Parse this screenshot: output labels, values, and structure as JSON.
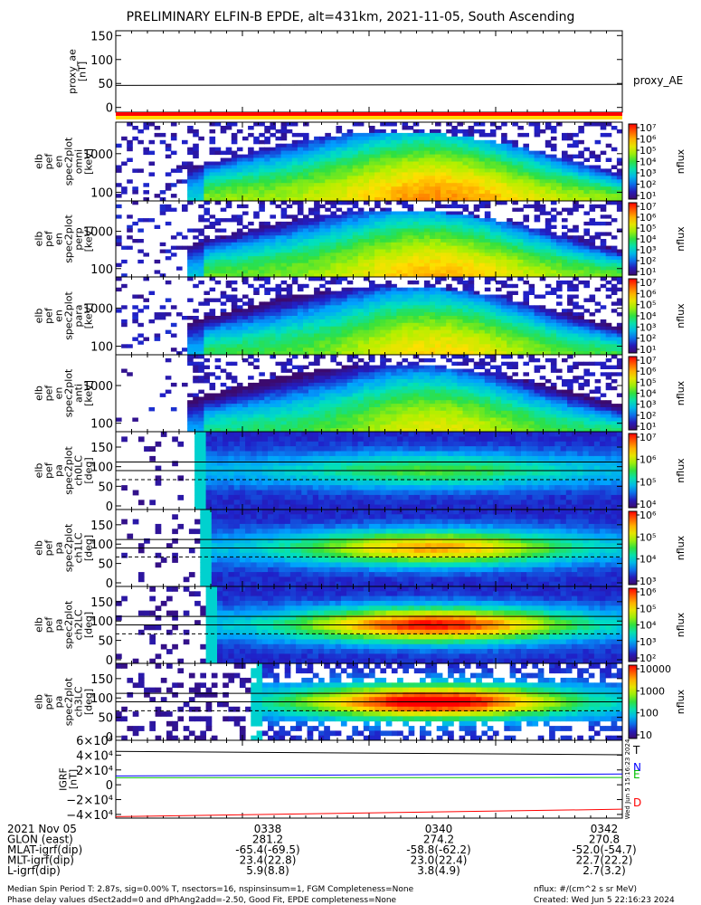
{
  "title": "PRELIMINARY ELFIN-B EPDE, alt=431km, 2021-11-05, South Ascending",
  "colors": {
    "proxy_bar_red": "#ff0000",
    "proxy_bar_yellow": "#ffd800",
    "igrf_T": "#000000",
    "igrf_N": "#0000ff",
    "igrf_E": "#00c000",
    "igrf_D": "#ff0000"
  },
  "panels": [
    {
      "id": "proxy",
      "ylabel": [
        "proxy_ae",
        "[nT]"
      ],
      "ticks": [
        "150",
        "100",
        "50",
        "0"
      ],
      "tick_values": [
        150,
        100,
        50,
        0
      ],
      "ylim": [
        -10,
        160
      ],
      "legend": "proxy_AE",
      "trace_value": 47
    },
    {
      "id": "spec-omni",
      "ylabel": [
        "elb",
        "pef",
        "en",
        "spec2plot",
        "omni",
        "[keV]"
      ],
      "ticks": [
        "1000",
        "100"
      ],
      "cbar": {
        "label": "nflux",
        "ticks": [
          "10⁷",
          "10⁶",
          "10⁵",
          "10⁴",
          "10³",
          "10²",
          "10¹"
        ]
      }
    },
    {
      "id": "spec-perp",
      "ylabel": [
        "elb",
        "pef",
        "en",
        "spec2plot",
        "perp",
        "[keV]"
      ],
      "ticks": [
        "1000",
        "100"
      ],
      "cbar": {
        "label": "nflux",
        "ticks": [
          "10⁷",
          "10⁶",
          "10⁵",
          "10⁴",
          "10³",
          "10²",
          "10¹"
        ]
      }
    },
    {
      "id": "spec-para",
      "ylabel": [
        "elb",
        "pef",
        "en",
        "spec2plot",
        "para",
        "[keV]"
      ],
      "ticks": [
        "1000",
        "100"
      ],
      "cbar": {
        "label": "nflux",
        "ticks": [
          "10⁷",
          "10⁶",
          "10⁵",
          "10⁴",
          "10³",
          "10²",
          "10¹"
        ]
      }
    },
    {
      "id": "spec-anti",
      "ylabel": [
        "elb",
        "pef",
        "en",
        "spec2plot",
        "anti",
        "[keV]"
      ],
      "ticks": [
        "1000",
        "100"
      ],
      "cbar": {
        "label": "nflux",
        "ticks": [
          "10⁷",
          "10⁶",
          "10⁵",
          "10⁴",
          "10³",
          "10²",
          "10¹"
        ]
      }
    },
    {
      "id": "pa-ch0",
      "ylabel": [
        "elb",
        "pef",
        "pa",
        "spec2plot",
        "ch0LC",
        "[deg]"
      ],
      "ticks": [
        "150",
        "100",
        "50",
        "0"
      ],
      "cbar": {
        "label": "nflux",
        "ticks": [
          "10⁷",
          "10⁶",
          "10⁵",
          "10⁴"
        ]
      }
    },
    {
      "id": "pa-ch1",
      "ylabel": [
        "elb",
        "pef",
        "pa",
        "spec2plot",
        "ch1LC",
        "[deg]"
      ],
      "ticks": [
        "150",
        "100",
        "50",
        "0"
      ],
      "cbar": {
        "label": "nflux",
        "ticks": [
          "10⁶",
          "10⁵",
          "10⁴",
          "10³"
        ]
      }
    },
    {
      "id": "pa-ch2",
      "ylabel": [
        "elb",
        "pef",
        "pa",
        "spec2plot",
        "ch2LC",
        "[deg]"
      ],
      "ticks": [
        "150",
        "100",
        "50",
        "0"
      ],
      "cbar": {
        "label": "nflux",
        "ticks": [
          "10⁶",
          "10⁵",
          "10⁴",
          "10³",
          "10²"
        ]
      }
    },
    {
      "id": "pa-ch3",
      "ylabel": [
        "elb",
        "pef",
        "pa",
        "spec2plot",
        "ch3LC",
        "[deg]"
      ],
      "ticks": [
        "150",
        "100",
        "50",
        "0"
      ],
      "cbar": {
        "label": "nflux",
        "ticks": [
          "10000",
          "1000",
          "100",
          "10"
        ]
      }
    },
    {
      "id": "igrf",
      "ylabel": [
        "IGRF",
        "[nT]"
      ],
      "ticks": [
        "6×10⁴",
        "4×10⁴",
        "2×10⁴",
        "0",
        "−2×10⁴",
        "−4×10⁴"
      ],
      "tick_values": [
        60000,
        40000,
        20000,
        0,
        -20000,
        -40000
      ],
      "ylim": [
        -45000,
        60000
      ],
      "legend": [
        "T",
        "N",
        "E",
        "D"
      ],
      "stamp": "Wed Jun  5 15:16:23 2024"
    }
  ],
  "chart_data": {
    "type": "heatmap",
    "title": "PRELIMINARY ELFIN-B EPDE, alt=431km, 2021-11-05, South Ascending",
    "x_ticks": [
      "0338",
      "0340",
      "0342"
    ],
    "proxy_ae": {
      "name": "proxy_AE",
      "ylim": [
        -10,
        160
      ],
      "value_start": 46,
      "value_end": 48
    },
    "energy_spectra": {
      "ylabel": "[keV]",
      "yscale": "log",
      "yticks": [
        100,
        1000
      ],
      "colorbar": {
        "label": "nflux",
        "range": [
          10,
          10000000
        ],
        "scale": "log"
      }
    },
    "pitch_angle_spectra": {
      "ylabel": "[deg]",
      "yticks": [
        0,
        50,
        100,
        150
      ],
      "dashed_line_deg": 67,
      "loss_cone_lines_deg": [
        90,
        112
      ]
    },
    "igrf": {
      "series": [
        {
          "name": "T",
          "start": 45000,
          "end": 40500
        },
        {
          "name": "N",
          "start": 12000,
          "end": 14500
        },
        {
          "name": "E",
          "start": 9500,
          "end": 9800
        },
        {
          "name": "D",
          "start": -43000,
          "end": -33000
        }
      ]
    }
  },
  "footer": {
    "rows": [
      {
        "label": "2021 Nov 05",
        "values": [
          "0338",
          "0340",
          "0342"
        ]
      },
      {
        "label": "GLON (east)",
        "values": [
          "281.2",
          "274.2",
          "270.8"
        ]
      },
      {
        "label": "MLAT-igrf(dip)",
        "values": [
          "-65.4(-69.5)",
          "-58.8(-62.2)",
          "-52.0(-54.7)"
        ]
      },
      {
        "label": "MLT-igrf(dip)",
        "values": [
          "23.4(22.8)",
          "23.0(22.4)",
          "22.7(22.2)"
        ]
      },
      {
        "label": "L-igrf(dip)",
        "values": [
          "5.9(8.8)",
          "3.8(4.9)",
          "2.7(3.2)"
        ]
      }
    ],
    "note1": "Median Spin Period T: 2.87s, sig=0.00% T, nsectors=16, nspinsinsum=1, FGM Completeness=None",
    "note2": "Phase delay values dSect2add=0 and dPhAng2add=-2.50, Good Fit, EPDE completeness=None",
    "units": "nflux: #/(cm^2 s sr MeV)",
    "created": "Created: Wed Jun  5 22:16:23 2024"
  }
}
